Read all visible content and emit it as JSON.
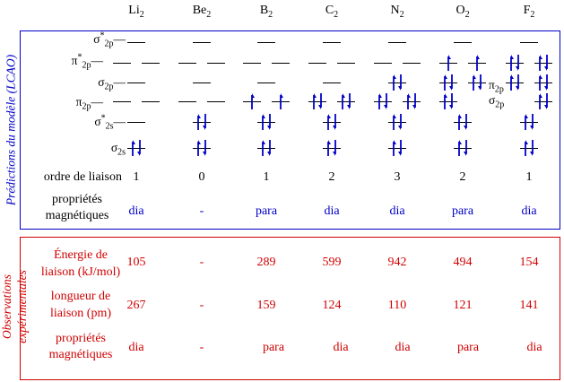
{
  "molecules": [
    "Li2",
    "Be2",
    "B2",
    "C2",
    "N2",
    "O2",
    "F2"
  ],
  "lcao": {
    "title": "Prédictions du modèle (LCAO)",
    "orbitals": {
      "sigma2p_star": "σ2p*",
      "pi2p_star": "π2p*",
      "sigma2p": "σ2p",
      "pi2p": "π2p",
      "sigma2s_star": "σ2s*",
      "sigma2s": "σ2s"
    },
    "configs": {
      "Li2": {
        "s2s": 2,
        "s2ss": 0,
        "p2p": [
          0,
          0
        ],
        "s2p": 0,
        "p2ps": [
          0,
          0
        ],
        "s2ps": 0
      },
      "Be2": {
        "s2s": 2,
        "s2ss": 2,
        "p2p": [
          0,
          0
        ],
        "s2p": 0,
        "p2ps": [
          0,
          0
        ],
        "s2ps": 0
      },
      "B2": {
        "s2s": 2,
        "s2ss": 2,
        "p2p": [
          1,
          1
        ],
        "s2p": 0,
        "p2ps": [
          0,
          0
        ],
        "s2ps": 0
      },
      "C2": {
        "s2s": 2,
        "s2ss": 2,
        "p2p": [
          2,
          2
        ],
        "s2p": 0,
        "p2ps": [
          0,
          0
        ],
        "s2ps": 0
      },
      "N2": {
        "s2s": 2,
        "s2ss": 2,
        "p2p": [
          2,
          2
        ],
        "s2p": 2,
        "p2ps": [
          0,
          0
        ],
        "s2ps": 0
      },
      "O2": {
        "s2s": 2,
        "s2ss": 2,
        "s2p": 2,
        "p2p": [
          2,
          2
        ],
        "p2ps": [
          1,
          1
        ],
        "s2ps": 0
      },
      "F2": {
        "s2s": 2,
        "s2ss": 2,
        "s2p": 2,
        "p2p": [
          2,
          2
        ],
        "p2ps": [
          2,
          2
        ],
        "s2ps": 0
      }
    },
    "bond_order_label": "ordre de liaison",
    "bond_order": [
      "1",
      "0",
      "1",
      "2",
      "3",
      "2",
      "1"
    ],
    "magnetic_label_line1": "propriétés",
    "magnetic_label_line2": "magnétiques",
    "magnetic": [
      "dia",
      "-",
      "para",
      "dia",
      "dia",
      "para",
      "dia"
    ]
  },
  "observations": {
    "title_line1": "Observations",
    "title_line2": "expérimentales",
    "energy_label_line1": "Énergie de",
    "energy_label_line2": "liaison (kJ/mol)",
    "energy": [
      "105",
      "-",
      "289",
      "599",
      "942",
      "494",
      "154"
    ],
    "length_label_line1": "longueur de",
    "length_label_line2": "liaison (pm)",
    "length": [
      "267",
      "-",
      "159",
      "124",
      "110",
      "121",
      "141"
    ],
    "magnetic_label_line1": "propriétés",
    "magnetic_label_line2": "magnétiques",
    "magnetic": [
      "dia",
      "-",
      "para",
      "dia",
      "dia",
      "para",
      "dia"
    ]
  },
  "colors": {
    "model": "#0000c8",
    "observed": "#d00000",
    "text": "#000000"
  }
}
